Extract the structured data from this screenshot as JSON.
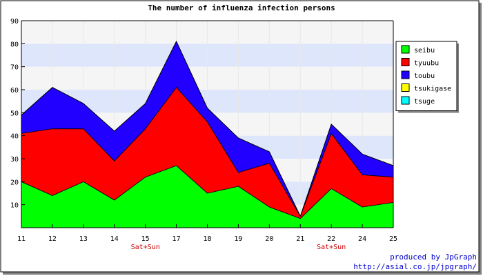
{
  "chart_data": {
    "type": "area",
    "stacked": true,
    "title": "The number of influenza infection persons",
    "xlabel": "",
    "ylabel": "",
    "categories": [
      "11",
      "12",
      "13",
      "14",
      "15",
      "17",
      "18",
      "19",
      "20",
      "21",
      "22",
      "24",
      "25"
    ],
    "weekend_labels": [
      {
        "category": "15",
        "text": "Sat+Sun"
      },
      {
        "category": "22",
        "text": "Sat+Sun"
      }
    ],
    "ylim": [
      0,
      90
    ],
    "yticks": [
      10,
      20,
      30,
      40,
      50,
      60,
      70,
      80,
      90
    ],
    "grid": true,
    "legend_position": "right",
    "series": [
      {
        "name": "seibu",
        "color": "#00ff00",
        "values": [
          20,
          14,
          20,
          12,
          22,
          27,
          15,
          18,
          9,
          4,
          17,
          9,
          11
        ]
      },
      {
        "name": "tyuubu",
        "color": "#ff0000",
        "values": [
          21,
          29,
          23,
          17,
          21,
          34,
          31,
          6,
          19,
          1,
          24,
          14,
          11
        ]
      },
      {
        "name": "toubu",
        "color": "#2200ff",
        "values": [
          8,
          18,
          11,
          13,
          11,
          20,
          6,
          15,
          5,
          0,
          4,
          9,
          5
        ]
      },
      {
        "name": "tsukigase",
        "color": "#ffff00",
        "values": [
          0,
          0,
          0,
          0,
          0,
          0,
          0,
          0,
          0,
          0,
          0,
          0,
          0
        ]
      },
      {
        "name": "tsuge",
        "color": "#00ffff",
        "values": [
          0,
          0,
          0,
          0,
          0,
          0,
          0,
          0,
          0,
          0,
          0,
          0,
          0
        ]
      }
    ],
    "credits": [
      "produced by JpGraph",
      "http://asial.co.jp/jpgraph/"
    ]
  }
}
